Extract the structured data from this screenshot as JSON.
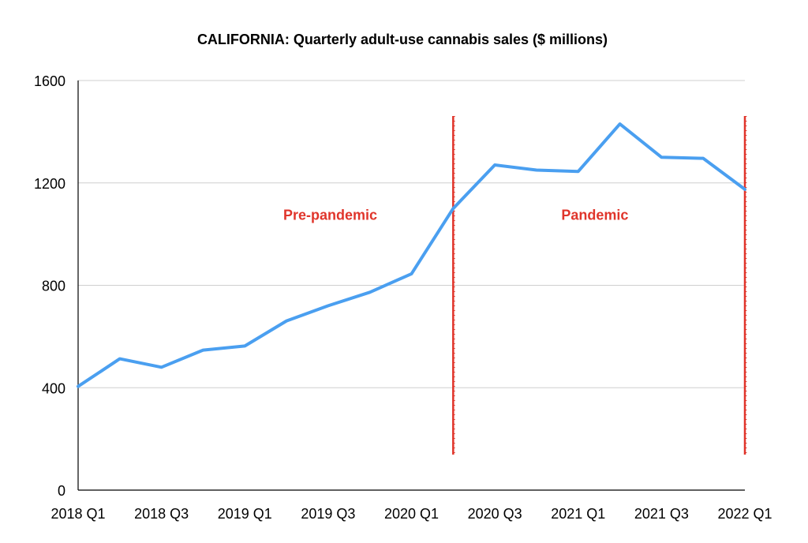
{
  "chart_data": {
    "type": "line",
    "title": "CALIFORNIA: Quarterly adult-use cannabis sales ($ millions)",
    "xlabel": "",
    "ylabel": "",
    "ylim": [
      0,
      1600
    ],
    "yticks": [
      0,
      400,
      800,
      1200,
      1600
    ],
    "grid": true,
    "categories": [
      "2018 Q1",
      "2018 Q2",
      "2018 Q3",
      "2018 Q4",
      "2019 Q1",
      "2019 Q2",
      "2019 Q3",
      "2019 Q4",
      "2020 Q1",
      "2020 Q2",
      "2020 Q3",
      "2020 Q4",
      "2021 Q1",
      "2021 Q2",
      "2021 Q3",
      "2021 Q4",
      "2022 Q1"
    ],
    "xtick_labels": [
      "2018 Q1",
      "2018 Q3",
      "2019 Q1",
      "2019 Q3",
      "2020 Q1",
      "2020 Q3",
      "2021 Q1",
      "2021 Q3",
      "2022 Q1"
    ],
    "series": [
      {
        "name": "Sales",
        "color": "#4a9ff0",
        "values": [
          405,
          513,
          480,
          547,
          563,
          661,
          720,
          773,
          845,
          1100,
          1270,
          1250,
          1245,
          1430,
          1300,
          1296,
          1175
        ]
      }
    ],
    "dividers": [
      {
        "at_category": 9,
        "color": "#e0352b"
      },
      {
        "at_category": 16,
        "color": "#e0352b"
      }
    ],
    "annotations": [
      {
        "text": "Pre-pandemic",
        "x_category": 6.05,
        "y": 1077,
        "color": "#e0352b"
      },
      {
        "text": "Pandemic",
        "x_category": 12.4,
        "y": 1077,
        "color": "#e0352b"
      }
    ]
  }
}
